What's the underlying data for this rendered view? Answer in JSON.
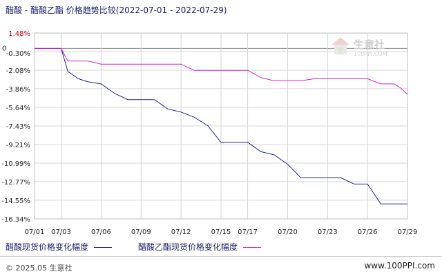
{
  "title": "醋酸 - 醋酸乙酯 价格趋势比较(2022-07-01 - 2022-07-29)",
  "watermark": {
    "name": "生意社",
    "url": "100PPI.COM"
  },
  "footer": {
    "copyright": "© 2025.05 生意社",
    "url": "www.100PPI.com"
  },
  "colors": {
    "series1": "#1c1ca8",
    "series2": "#d21ed2",
    "grid": "#d6d6d6",
    "text": "#1a1a6e",
    "axis_text": "#222222",
    "ylabel_red": "#cc0000"
  },
  "chart_data": {
    "type": "line",
    "title": "醋酸 - 醋酸乙酯 价格趋势比较(2022-07-01 - 2022-07-29)",
    "xlabel": "",
    "ylabel": "",
    "x_ticks": [
      "07/01",
      "07/03",
      "07/06",
      "07/09",
      "07/12",
      "07/15",
      "07/17",
      "07/20",
      "07/23",
      "07/26",
      "07/29"
    ],
    "y_ticks": [
      "1.48%",
      "-0.30%",
      "-2.08%",
      "-3.86%",
      "-5.64%",
      "-7.43%",
      "-9.21%",
      "-10.99%",
      "-12.77%",
      "-14.55%",
      "-16.34%"
    ],
    "ylim": [
      -16.34,
      1.48
    ],
    "zero_label": "0",
    "grid": true,
    "legend_position": "bottom",
    "series": [
      {
        "name": "醋酸现货价格变化幅度",
        "points": [
          [
            "07/01",
            0
          ],
          [
            "07/02",
            0
          ],
          [
            "07/03",
            0
          ],
          [
            "07/03.5",
            -2.2
          ],
          [
            "07/04.3",
            -2.9
          ],
          [
            "07/05",
            -3.2
          ],
          [
            "07/06",
            -3.4
          ],
          [
            "07/07",
            -4.3
          ],
          [
            "07/08",
            -4.9
          ],
          [
            "07/10",
            -4.9
          ],
          [
            "07/11",
            -5.8
          ],
          [
            "07/12",
            -6.1
          ],
          [
            "07/13",
            -6.6
          ],
          [
            "07/14",
            -7.4
          ],
          [
            "07/15",
            -9.0
          ],
          [
            "07/17",
            -9.0
          ],
          [
            "07/18",
            -9.9
          ],
          [
            "07/19",
            -10.2
          ],
          [
            "07/20",
            -11.1
          ],
          [
            "07/21",
            -12.4
          ],
          [
            "07/24",
            -12.4
          ],
          [
            "07/25",
            -13.0
          ],
          [
            "07/26",
            -13.0
          ],
          [
            "07/27",
            -14.9
          ],
          [
            "07/29",
            -14.9
          ]
        ]
      },
      {
        "name": "醋酸乙酯现货价格变化幅度",
        "points": [
          [
            "07/01",
            0
          ],
          [
            "07/02",
            0
          ],
          [
            "07/03",
            0
          ],
          [
            "07/03.5",
            -1.2
          ],
          [
            "07/05",
            -1.2
          ],
          [
            "07/06",
            -1.5
          ],
          [
            "07/12",
            -1.5
          ],
          [
            "07/13",
            -2.1
          ],
          [
            "07/17",
            -2.1
          ],
          [
            "07/18",
            -2.8
          ],
          [
            "07/19",
            -3.1
          ],
          [
            "07/21",
            -3.1
          ],
          [
            "07/22",
            -2.9
          ],
          [
            "07/26",
            -2.9
          ],
          [
            "07/27",
            -3.4
          ],
          [
            "07/28",
            -3.4
          ],
          [
            "07/28.5",
            -3.8
          ],
          [
            "07/29",
            -4.4
          ]
        ]
      }
    ]
  }
}
